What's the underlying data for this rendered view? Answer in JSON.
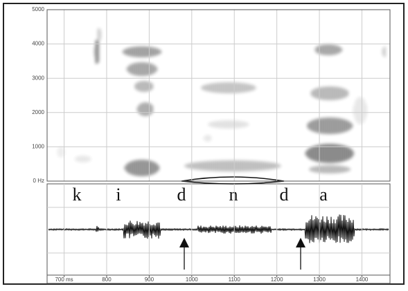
{
  "chart_data": {
    "type": "spectrogram",
    "xlim": [
      660,
      1466
    ],
    "xticks": [
      {
        "value": 700,
        "label": "700 ms"
      },
      800,
      900,
      1000,
      1100,
      1200,
      1300,
      1400
    ],
    "ylim": [
      0,
      5000
    ],
    "yticks": [
      {
        "value": 0,
        "label": "0 Hz"
      },
      1000,
      2000,
      3000,
      4000,
      5000
    ],
    "grid": true,
    "segments": [
      "k",
      "i",
      "d",
      "n",
      "d",
      "a"
    ]
  }
}
